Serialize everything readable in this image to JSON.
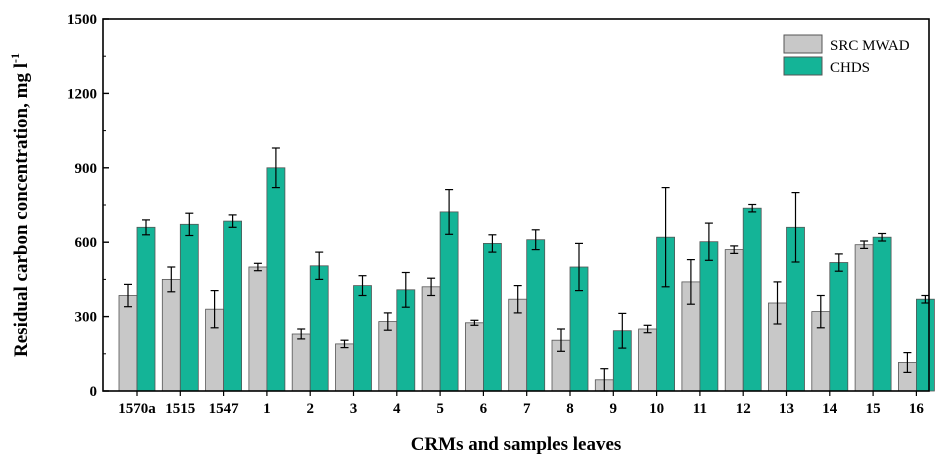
{
  "chart_data": {
    "type": "bar",
    "xlabel": "CRMs and samples leaves",
    "ylabel": "Residual carbon concentration, mg l",
    "ylabel_superscript": "-1",
    "ylim": [
      0,
      1500
    ],
    "yticks": [
      "0",
      "300",
      "600",
      "900",
      "1200",
      "1500"
    ],
    "categories": [
      "1570a",
      "1515",
      "1547",
      "1",
      "2",
      "3",
      "4",
      "5",
      "6",
      "7",
      "8",
      "9",
      "10",
      "11",
      "12",
      "13",
      "14",
      "15",
      "16"
    ],
    "legend_position": "top-right",
    "grid": false,
    "series": [
      {
        "name": "SRC MWAD",
        "color": "#c8c8c8",
        "values": [
          385,
          450,
          330,
          500,
          230,
          190,
          280,
          420,
          275,
          370,
          205,
          45,
          250,
          440,
          570,
          355,
          320,
          590,
          115
        ],
        "errors": [
          45,
          50,
          75,
          15,
          20,
          15,
          35,
          35,
          10,
          55,
          45,
          45,
          15,
          90,
          15,
          85,
          65,
          15,
          40
        ]
      },
      {
        "name": "CHDS",
        "color": "#14b497",
        "values": [
          660,
          672,
          685,
          900,
          505,
          425,
          408,
          722,
          595,
          610,
          500,
          243,
          620,
          602,
          737,
          660,
          518,
          620,
          370
        ],
        "errors": [
          30,
          45,
          25,
          80,
          55,
          40,
          70,
          90,
          35,
          40,
          95,
          70,
          200,
          75,
          15,
          140,
          35,
          15,
          15
        ]
      }
    ]
  }
}
